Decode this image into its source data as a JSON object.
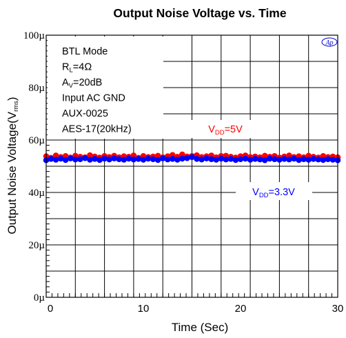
{
  "chart_data": {
    "type": "scatter",
    "title": "Output Noise Voltage  vs. Time",
    "xlabel": "Time (Sec)",
    "ylabel": {
      "main": "Output Noise Voltage(V",
      "sub": "rms",
      "close": ")"
    },
    "xlim": [
      0,
      30
    ],
    "ylim": [
      0,
      100
    ],
    "y_unit": "µV",
    "x_ticks": [
      0,
      10,
      20,
      30
    ],
    "x_tick_labels": [
      "0",
      "10",
      "20",
      "30"
    ],
    "y_ticks": [
      0,
      20,
      40,
      60,
      80,
      100
    ],
    "y_tick_labels": [
      "0µ",
      "20µ",
      "40µ",
      "60µ",
      "80µ",
      "100µ"
    ],
    "grid": true,
    "logo": "Ap",
    "annotations": [
      {
        "text": "BTL Mode"
      },
      {
        "text": "R",
        "sub": "L",
        "rest": "=4Ω"
      },
      {
        "text": "A",
        "sub": "V",
        "rest": "=20dB"
      },
      {
        "text": "Input AC GND"
      },
      {
        "text": "AUX-0025"
      },
      {
        "text": "AES-17(20kHz)"
      }
    ],
    "series": [
      {
        "name": {
          "main": "V",
          "sub": "DD",
          "rest": "=5V"
        },
        "color": "#ff0000",
        "x": [
          0.0,
          0.5,
          1.0,
          1.5,
          2.0,
          2.5,
          3.0,
          3.5,
          4.0,
          4.5,
          5.0,
          5.5,
          6.0,
          6.5,
          7.0,
          7.5,
          8.0,
          8.5,
          9.0,
          9.5,
          10.0,
          10.5,
          11.0,
          11.5,
          12.0,
          12.5,
          13.0,
          13.5,
          14.0,
          14.5,
          15.0,
          15.5,
          16.0,
          16.5,
          17.0,
          17.5,
          18.0,
          18.5,
          19.0,
          19.5,
          20.0,
          20.5,
          21.0,
          21.5,
          22.0,
          22.5,
          23.0,
          23.5,
          24.0,
          24.5,
          25.0,
          25.5,
          26.0,
          26.5,
          27.0,
          27.5,
          28.0,
          28.5,
          29.0,
          29.5,
          30.0
        ],
        "y": [
          53.8,
          53.2,
          54.1,
          53.5,
          53.9,
          53.3,
          54.0,
          53.6,
          53.4,
          54.2,
          53.7,
          53.3,
          53.9,
          53.5,
          54.0,
          53.4,
          53.8,
          53.6,
          54.1,
          53.2,
          53.9,
          53.5,
          53.7,
          54.0,
          53.4,
          53.8,
          54.3,
          53.6,
          54.5,
          53.7,
          53.9,
          54.2,
          53.5,
          53.8,
          54.1,
          53.4,
          53.9,
          54.0,
          53.6,
          53.3,
          53.8,
          54.1,
          53.5,
          53.7,
          53.4,
          54.0,
          53.6,
          53.9,
          53.3,
          53.7,
          54.1,
          53.5,
          53.8,
          53.4,
          54.0,
          53.6,
          53.3,
          53.9,
          53.5,
          53.7,
          53.4
        ]
      },
      {
        "name": {
          "main": "V",
          "sub": "DD",
          "rest": "=3.3V"
        },
        "color": "#0000ff",
        "x": [
          0.0,
          0.5,
          1.0,
          1.5,
          2.0,
          2.5,
          3.0,
          3.5,
          4.0,
          4.5,
          5.0,
          5.5,
          6.0,
          6.5,
          7.0,
          7.5,
          8.0,
          8.5,
          9.0,
          9.5,
          10.0,
          10.5,
          11.0,
          11.5,
          12.0,
          12.5,
          13.0,
          13.5,
          14.0,
          14.5,
          15.0,
          15.5,
          16.0,
          16.5,
          17.0,
          17.5,
          18.0,
          18.5,
          19.0,
          19.5,
          20.0,
          20.5,
          21.0,
          21.5,
          22.0,
          22.5,
          23.0,
          23.5,
          24.0,
          24.5,
          25.0,
          25.5,
          26.0,
          26.5,
          27.0,
          27.5,
          28.0,
          28.5,
          29.0,
          29.5,
          30.0
        ],
        "y": [
          52.3,
          52.8,
          52.5,
          52.9,
          52.4,
          53.0,
          52.6,
          52.7,
          53.1,
          52.5,
          52.8,
          52.4,
          52.9,
          52.6,
          53.0,
          52.7,
          52.5,
          52.9,
          52.6,
          52.8,
          52.5,
          52.9,
          52.7,
          52.4,
          53.0,
          52.6,
          52.8,
          52.5,
          52.9,
          53.1,
          53.5,
          52.8,
          52.6,
          53.0,
          52.7,
          52.5,
          52.9,
          52.6,
          52.8,
          52.4,
          52.7,
          52.9,
          52.5,
          52.8,
          52.6,
          52.3,
          52.9,
          52.7,
          52.5,
          52.8,
          52.6,
          52.9,
          52.4,
          52.7,
          52.5,
          52.8,
          52.6,
          52.4,
          52.7,
          52.5,
          52.3
        ]
      }
    ]
  }
}
